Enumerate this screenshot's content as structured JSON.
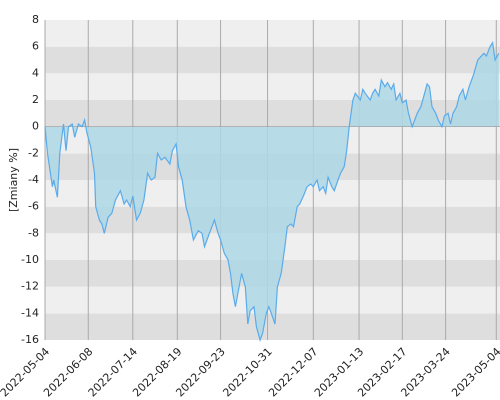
{
  "chart_data": {
    "type": "area",
    "y_label": "[Zmiany %]",
    "color": "#5aabeb",
    "fill": "#add8e6",
    "grid": true,
    "xlim": [
      0,
      368
    ],
    "xticks": [
      {
        "value": 0,
        "label": "2022-05-04"
      },
      {
        "value": 35,
        "label": "2022-06-08"
      },
      {
        "value": 71,
        "label": "2022-07-14"
      },
      {
        "value": 107,
        "label": "2022-08-19"
      },
      {
        "value": 142,
        "label": "2022-09-23"
      },
      {
        "value": 180,
        "label": "2022-10-31"
      },
      {
        "value": 217,
        "label": "2022-12-07"
      },
      {
        "value": 254,
        "label": "2023-01-13"
      },
      {
        "value": 289,
        "label": "2023-02-17"
      },
      {
        "value": 324,
        "label": "2023-03-24"
      },
      {
        "value": 365,
        "label": "2023-05-04"
      }
    ],
    "ylim": [
      -16,
      8
    ],
    "yticks": [
      -16,
      -14,
      -12,
      -10,
      -8,
      -6,
      -4,
      -2,
      0,
      2,
      4,
      6,
      8
    ],
    "series": [
      {
        "x": [
          0,
          2,
          6,
          7,
          10,
          12,
          15,
          17,
          19,
          22,
          24,
          27,
          30,
          32,
          34,
          37,
          40,
          41,
          44,
          46,
          48,
          51,
          54,
          57,
          61,
          64,
          66,
          69,
          71,
          74,
          77,
          80,
          83,
          86,
          89,
          91,
          94,
          97,
          101,
          103,
          106,
          108,
          111,
          114,
          117,
          120,
          124,
          127,
          129,
          133,
          135,
          137,
          140,
          142,
          145,
          148,
          150,
          152,
          154,
          157,
          159,
          162,
          164,
          166,
          169,
          171,
          174,
          176,
          179,
          181,
          183,
          186,
          188,
          191,
          194,
          196,
          199,
          201,
          204,
          206,
          209,
          212,
          215,
          217,
          220,
          222,
          225,
          227,
          229,
          232,
          234,
          237,
          239,
          242,
          244,
          246,
          249,
          251,
          255,
          257,
          259,
          263,
          265,
          267,
          270,
          272,
          275,
          277,
          280,
          282,
          284,
          287,
          289,
          292,
          294,
          297,
          299,
          301,
          304,
          307,
          309,
          311,
          313,
          316,
          318,
          321,
          323,
          326,
          328,
          330,
          333,
          335,
          338,
          340,
          343,
          345,
          347,
          350,
          352,
          355,
          357,
          360,
          362,
          364,
          367
        ],
        "values": [
          0,
          -2,
          -4.5,
          -4,
          -5.3,
          -2,
          0.2,
          -1.8,
          0,
          0.2,
          -0.8,
          0.2,
          0,
          0.5,
          -0.5,
          -1.5,
          -3.5,
          -6,
          -7,
          -7.3,
          -8,
          -6.8,
          -6.5,
          -5.5,
          -4.8,
          -5.8,
          -5.5,
          -6,
          -5.2,
          -7,
          -6.5,
          -5.5,
          -3.5,
          -4,
          -3.8,
          -2,
          -2.5,
          -2.3,
          -2.8,
          -1.8,
          -1.3,
          -3,
          -4,
          -6,
          -7,
          -8.5,
          -7.8,
          -8,
          -9,
          -8,
          -7.5,
          -7,
          -8,
          -8.5,
          -9.5,
          -10,
          -11,
          -12.5,
          -13.5,
          -12,
          -11,
          -12,
          -14.8,
          -13.8,
          -13.5,
          -15,
          -16,
          -15.5,
          -14,
          -13.5,
          -14,
          -14.8,
          -12,
          -11,
          -9,
          -7.5,
          -7.3,
          -7.5,
          -6,
          -5.8,
          -5.2,
          -4.5,
          -4.3,
          -4.5,
          -4,
          -4.8,
          -4.5,
          -5,
          -3.8,
          -4.5,
          -4.8,
          -4,
          -3.5,
          -3,
          -1.8,
          0,
          2,
          2.5,
          2,
          2.8,
          2.5,
          2,
          2.5,
          2.8,
          2.3,
          3.5,
          3,
          3.3,
          2.8,
          3.2,
          2,
          2.5,
          1.8,
          2,
          1,
          0,
          0.5,
          1,
          1.5,
          2.5,
          3.2,
          3,
          1.5,
          1,
          0.5,
          0,
          0.8,
          1,
          0.2,
          1,
          1.5,
          2.3,
          2.8,
          2,
          3,
          3.5,
          4,
          5,
          5.2,
          5.5,
          5.3,
          6,
          6.3,
          5,
          5.5
        ]
      }
    ]
  }
}
